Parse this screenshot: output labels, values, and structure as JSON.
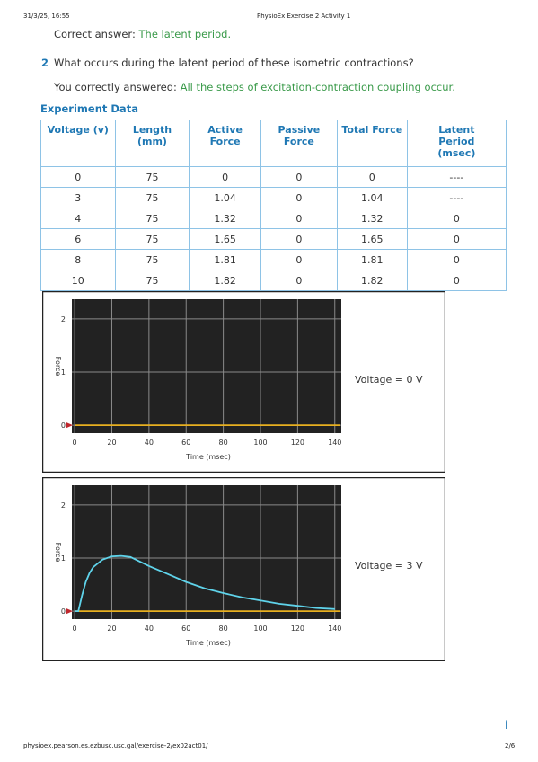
{
  "header": {
    "date": "31/3/25, 16:55",
    "title": "PhysioEx Exercise 2 Activity 1"
  },
  "previous": {
    "label": "Correct answer:",
    "answer": "The latent period."
  },
  "question": {
    "number": "2",
    "text": "What occurs during the latent period of these isometric contractions?",
    "answer_label": "You correctly answered:",
    "answer": "All the steps of excitation-contraction coupling occur."
  },
  "table": {
    "title": "Experiment Data",
    "columns": [
      "Voltage (v)",
      "Length (mm)",
      "Active Force",
      "Passive Force",
      "Total Force",
      "Latent Period (msec)"
    ],
    "rows": [
      [
        "0",
        "75",
        "0",
        "0",
        "0",
        "----"
      ],
      [
        "3",
        "75",
        "1.04",
        "0",
        "1.04",
        "----"
      ],
      [
        "4",
        "75",
        "1.32",
        "0",
        "1.32",
        "0"
      ],
      [
        "6",
        "75",
        "1.65",
        "0",
        "1.65",
        "0"
      ],
      [
        "8",
        "75",
        "1.81",
        "0",
        "1.81",
        "0"
      ],
      [
        "10",
        "75",
        "1.82",
        "0",
        "1.82",
        "0"
      ]
    ]
  },
  "charts": [
    {
      "type": "line",
      "y_label": "Force",
      "x_label": "Time (msec)",
      "annotation": "Voltage = 0 V",
      "xlim": [
        -1.5,
        143.5
      ],
      "ylim": [
        -0.15,
        2.37
      ],
      "xticks": [
        0,
        20,
        40,
        60,
        80,
        100,
        120,
        140
      ],
      "yticks": [
        0,
        1,
        2
      ],
      "series": [
        {
          "color": "#e8b020",
          "x": [
            0,
            143
          ],
          "values": [
            0,
            0
          ]
        }
      ]
    },
    {
      "type": "line",
      "y_label": "Force",
      "x_label": "Time (msec)",
      "annotation": "Voltage = 3 V",
      "xlim": [
        -1.5,
        143.5
      ],
      "ylim": [
        -0.15,
        2.37
      ],
      "xticks": [
        0,
        20,
        40,
        60,
        80,
        100,
        120,
        140
      ],
      "yticks": [
        0,
        1,
        2
      ],
      "series": [
        {
          "color": "#e8b020",
          "x": [
            0,
            143
          ],
          "values": [
            0,
            0
          ]
        },
        {
          "color": "#5fd3ea",
          "x": [
            0,
            2,
            4,
            6,
            8,
            10,
            15,
            20,
            25,
            30,
            40,
            50,
            60,
            70,
            80,
            90,
            100,
            110,
            120,
            130,
            140
          ],
          "values": [
            0,
            0,
            0.3,
            0.55,
            0.72,
            0.83,
            0.97,
            1.03,
            1.04,
            1.02,
            0.85,
            0.7,
            0.55,
            0.43,
            0.34,
            0.26,
            0.2,
            0.14,
            0.1,
            0.06,
            0.04
          ]
        }
      ]
    }
  ],
  "footer": {
    "url": "physioex.pearson.es.ezbusc.usc.gal/exercise-2/ex02act01/",
    "page": "2/6",
    "icon": "i"
  }
}
